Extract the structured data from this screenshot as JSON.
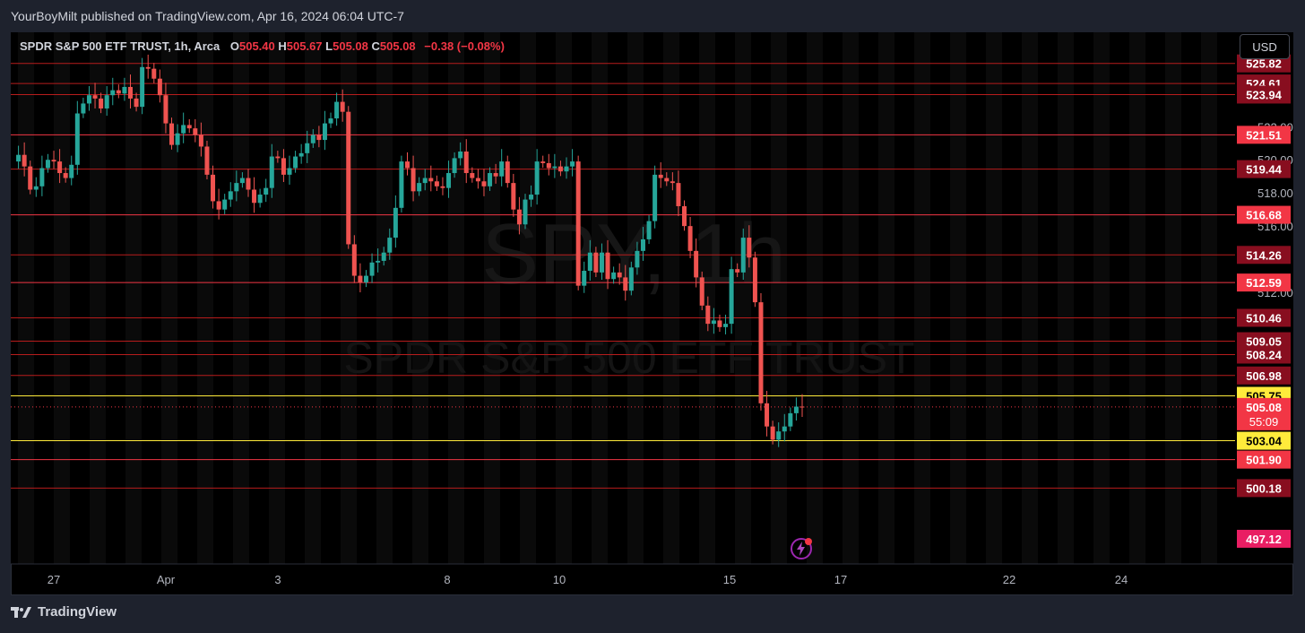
{
  "header": {
    "publish_line": "YourBoyMilt published on TradingView.com, Apr 16, 2024 06:04 UTC-7"
  },
  "legend": {
    "symbol": "SPDR S&P 500 ETF TRUST, 1h, Arca",
    "o_label": "O",
    "o_value": "505.40",
    "h_label": "H",
    "h_value": "505.67",
    "l_label": "L",
    "l_value": "505.08",
    "c_label": "C",
    "c_value": "505.08",
    "change": "−0.38 (−0.08%)"
  },
  "currency_button": "USD",
  "watermark": {
    "ticker": "SPY, 1h",
    "name": "SPDR S&P 500 ETF TRUST"
  },
  "footer": {
    "brand": "TradingView"
  },
  "colors": {
    "up": "#26a69a",
    "down": "#ef5350",
    "level_red": "#f23645",
    "level_yellow": "#ffeb3b",
    "background": "#000000",
    "frame": "#1e222d"
  },
  "icons": [
    "tradingview-logo-icon",
    "lightning-alert-icon"
  ],
  "chart_data": {
    "type": "candlestick",
    "timeframe": "1h",
    "ylim": [
      495.6,
      527.7
    ],
    "axis_labels_y": [
      "522.00",
      "520.00",
      "518.00",
      "516.00",
      "512.00"
    ],
    "axis_labels_x": [
      "27",
      "Apr",
      "3",
      "8",
      "10",
      "15",
      "17",
      "22",
      "24"
    ],
    "levels": [
      {
        "value": 525.82,
        "label": "525.82",
        "color": "red_dark"
      },
      {
        "value": 524.61,
        "label": "524.61",
        "color": "red_dark"
      },
      {
        "value": 523.94,
        "label": "523.94",
        "color": "red_dark"
      },
      {
        "value": 521.51,
        "label": "521.51",
        "color": "red_bright"
      },
      {
        "value": 519.44,
        "label": "519.44",
        "color": "red_dark"
      },
      {
        "value": 516.68,
        "label": "516.68",
        "color": "red_bright"
      },
      {
        "value": 514.26,
        "label": "514.26",
        "color": "red_dark"
      },
      {
        "value": 512.59,
        "label": "512.59",
        "color": "red_bright"
      },
      {
        "value": 510.46,
        "label": "510.46",
        "color": "red_dark"
      },
      {
        "value": 509.05,
        "label": "509.05",
        "color": "red_dark"
      },
      {
        "value": 508.24,
        "label": "508.24",
        "color": "red_dark"
      },
      {
        "value": 506.98,
        "label": "506.98",
        "color": "red_dark"
      },
      {
        "value": 505.75,
        "label": "505.75",
        "color": "yellow"
      },
      {
        "value": 503.04,
        "label": "503.04",
        "color": "yellow"
      },
      {
        "value": 501.9,
        "label": "501.90",
        "color": "red_bright"
      },
      {
        "value": 500.18,
        "label": "500.18",
        "color": "red_dark"
      }
    ],
    "current_price": {
      "value": 505.08,
      "label": "505.08",
      "countdown": "55:09"
    },
    "low_marker": {
      "value": 497.12,
      "label": "497.12"
    },
    "price_path": [
      519.9,
      520.3,
      519.6,
      518.2,
      518.4,
      519.5,
      520.0,
      519.9,
      519.2,
      518.9,
      519.7,
      522.8,
      523.4,
      523.9,
      523.7,
      523.1,
      523.9,
      524.2,
      524.0,
      524.4,
      523.7,
      523.2,
      525.6,
      525.5,
      524.9,
      523.9,
      522.2,
      520.9,
      521.6,
      522.1,
      521.9,
      521.5,
      520.8,
      519.1,
      517.5,
      517.0,
      517.6,
      518.1,
      518.6,
      518.9,
      518.2,
      517.4,
      517.9,
      518.3,
      520.2,
      520.1,
      519.1,
      519.5,
      520.2,
      520.4,
      521.0,
      521.5,
      521.2,
      522.2,
      522.5,
      523.5,
      522.9,
      514.9,
      513.0,
      512.6,
      513.0,
      513.8,
      513.9,
      514.4,
      515.3,
      517.1,
      519.9,
      519.5,
      518.1,
      518.6,
      518.9,
      518.7,
      518.4,
      518.3,
      519.2,
      520.1,
      520.5,
      519.2,
      518.9,
      518.7,
      518.4,
      519.2,
      519.0,
      519.9,
      518.6,
      517.0,
      516.1,
      517.6,
      517.9,
      519.9,
      519.8,
      519.5,
      519.6,
      519.3,
      519.6,
      519.9,
      512.4,
      513.3,
      514.4,
      513.2,
      514.4,
      512.8,
      513.2,
      512.9,
      512.1,
      513.5,
      514.5,
      515.2,
      516.3,
      519.1,
      518.9,
      518.7,
      518.6,
      517.2,
      516.0,
      514.5,
      512.9,
      511.2,
      510.1,
      510.3,
      509.9,
      510.1,
      513.4,
      513.2,
      515.3,
      514.1,
      511.4,
      505.3,
      503.9,
      503.1,
      503.6,
      503.9,
      504.7,
      505.1,
      505.08
    ]
  }
}
